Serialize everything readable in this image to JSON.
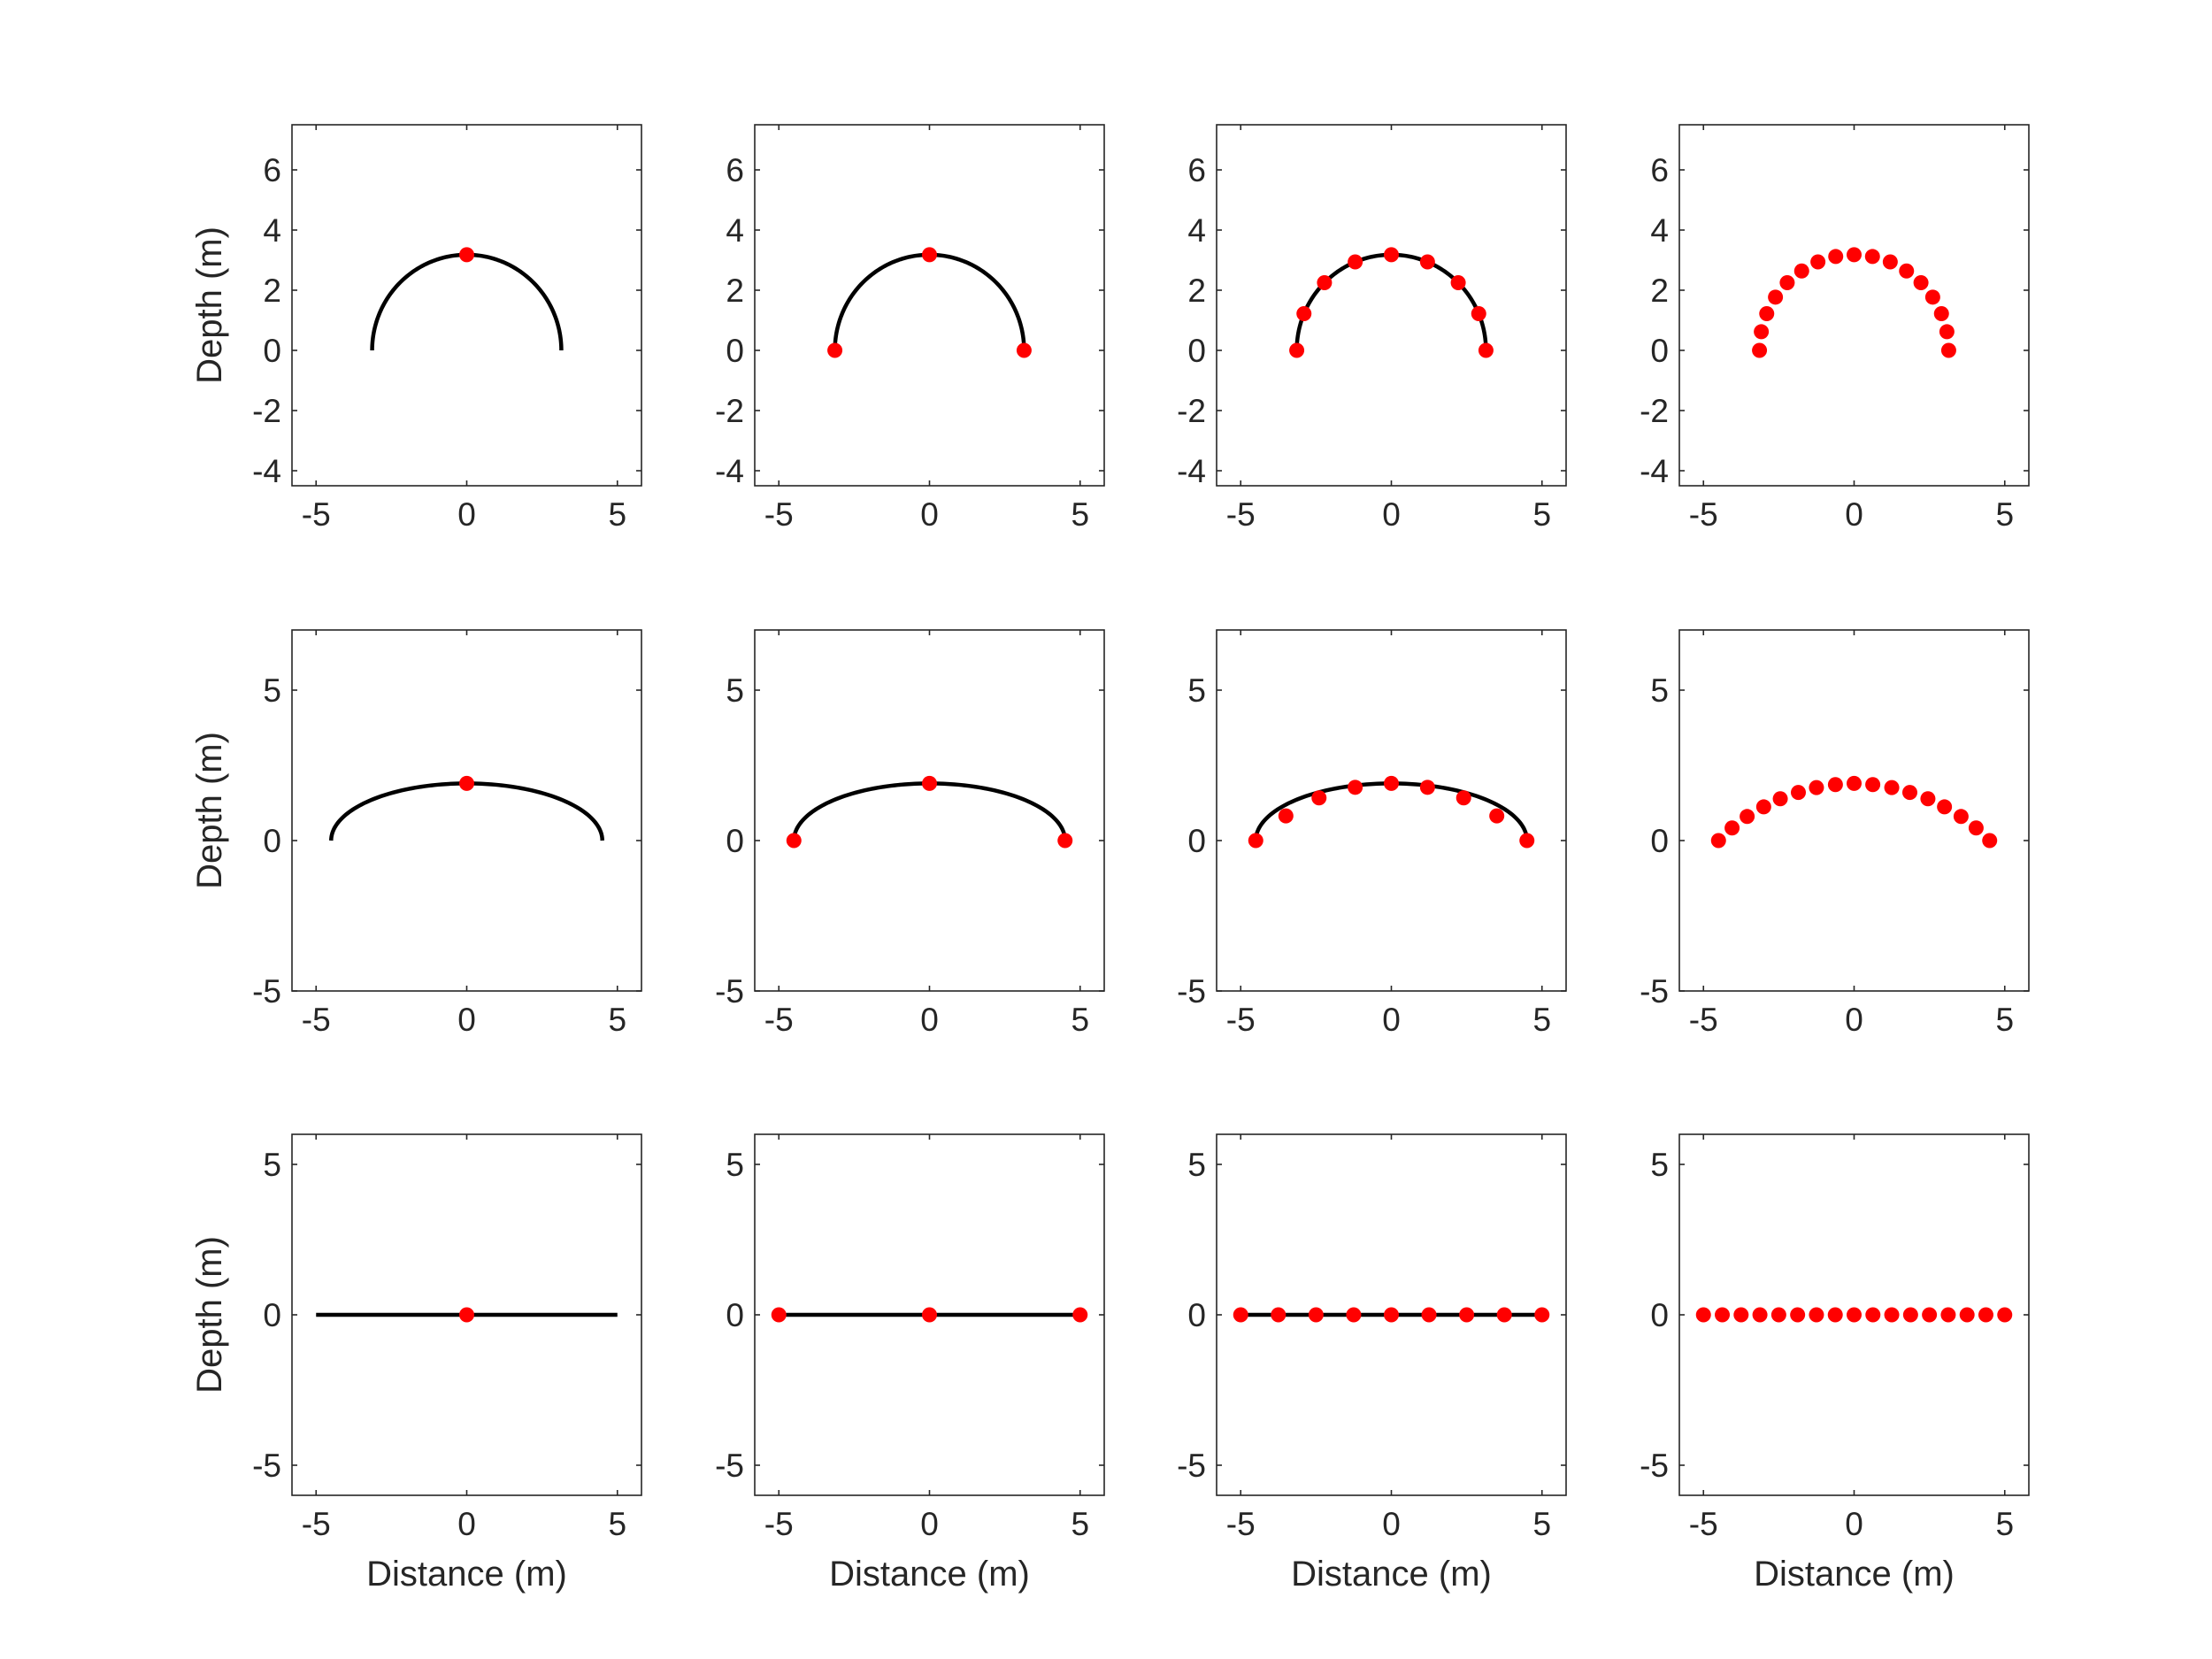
{
  "colors": {
    "curve": "#000000",
    "points": "#ff0000",
    "axes": "#262626",
    "background": "#ffffff"
  },
  "labels": {
    "xlabel": "Distance (m)",
    "ylabel": "Depth (m)"
  },
  "chart_data": [
    {
      "type": "line",
      "row": 0,
      "col": 0,
      "xlim": [
        -5.8,
        5.8
      ],
      "ylim": [
        -4.5,
        7.5
      ],
      "xticks": [
        -5,
        0,
        5
      ],
      "yticks": [
        -4,
        -2,
        0,
        2,
        4,
        6
      ],
      "xlabel": "",
      "ylabel": "Depth (m)",
      "curve": {
        "shape": "arc",
        "half_width": 3.14,
        "height": 3.18
      },
      "points": {
        "count": 1,
        "x": [
          0
        ],
        "y": [
          3.18
        ]
      }
    },
    {
      "type": "line",
      "row": 0,
      "col": 1,
      "xlim": [
        -5.8,
        5.8
      ],
      "ylim": [
        -4.5,
        7.5
      ],
      "xticks": [
        -5,
        0,
        5
      ],
      "yticks": [
        -4,
        -2,
        0,
        2,
        4,
        6
      ],
      "xlabel": "",
      "ylabel": "",
      "curve": {
        "shape": "arc",
        "half_width": 3.14,
        "height": 3.18
      },
      "points": {
        "count": 3,
        "x": [
          -3.14,
          0,
          3.14
        ],
        "y": [
          0,
          3.18,
          0
        ]
      }
    },
    {
      "type": "line",
      "row": 0,
      "col": 2,
      "xlim": [
        -5.8,
        5.8
      ],
      "ylim": [
        -4.5,
        7.5
      ],
      "xticks": [
        -5,
        0,
        5
      ],
      "yticks": [
        -4,
        -2,
        0,
        2,
        4,
        6
      ],
      "xlabel": "",
      "ylabel": "",
      "curve": {
        "shape": "arc",
        "half_width": 3.14,
        "height": 3.18
      },
      "points": {
        "count": 9,
        "x": [
          -3.14,
          -2.9,
          -2.22,
          -1.2,
          0,
          1.2,
          2.22,
          2.9,
          3.14
        ],
        "y": [
          0,
          1.22,
          2.25,
          2.94,
          3.18,
          2.94,
          2.25,
          1.22,
          0
        ]
      }
    },
    {
      "type": "scatter",
      "row": 0,
      "col": 3,
      "xlim": [
        -5.8,
        5.8
      ],
      "ylim": [
        -4.5,
        7.5
      ],
      "xticks": [
        -5,
        0,
        5
      ],
      "yticks": [
        -4,
        -2,
        0,
        2,
        4,
        6
      ],
      "xlabel": "",
      "ylabel": "",
      "curve": null,
      "points": {
        "count": 17,
        "x": [
          -3.14,
          -3.08,
          -2.9,
          -2.61,
          -2.22,
          -1.74,
          -1.2,
          -0.61,
          0,
          0.61,
          1.2,
          1.74,
          2.22,
          2.61,
          2.9,
          3.08,
          3.14
        ],
        "y": [
          0,
          0.62,
          1.22,
          1.77,
          2.25,
          2.64,
          2.94,
          3.12,
          3.18,
          3.12,
          2.94,
          2.64,
          2.25,
          1.77,
          1.22,
          0.62,
          0
        ]
      }
    },
    {
      "type": "line",
      "row": 1,
      "col": 0,
      "xlim": [
        -5.8,
        5.8
      ],
      "ylim": [
        -5,
        7
      ],
      "xticks": [
        -5,
        0,
        5
      ],
      "yticks": [
        -5,
        0,
        5
      ],
      "xlabel": "",
      "ylabel": "Depth (m)",
      "curve": {
        "shape": "arc",
        "half_width": 4.5,
        "height": 1.9
      },
      "points": {
        "count": 1,
        "x": [
          0
        ],
        "y": [
          1.9
        ]
      }
    },
    {
      "type": "line",
      "row": 1,
      "col": 1,
      "xlim": [
        -5.8,
        5.8
      ],
      "ylim": [
        -5,
        7
      ],
      "xticks": [
        -5,
        0,
        5
      ],
      "yticks": [
        -5,
        0,
        5
      ],
      "xlabel": "",
      "ylabel": "",
      "curve": {
        "shape": "arc",
        "half_width": 4.5,
        "height": 1.9
      },
      "points": {
        "count": 3,
        "x": [
          -4.5,
          0,
          4.5
        ],
        "y": [
          0,
          1.9,
          0
        ]
      }
    },
    {
      "type": "line",
      "row": 1,
      "col": 2,
      "xlim": [
        -5.8,
        5.8
      ],
      "ylim": [
        -5,
        7
      ],
      "xticks": [
        -5,
        0,
        5
      ],
      "yticks": [
        -5,
        0,
        5
      ],
      "xlabel": "",
      "ylabel": "",
      "curve": {
        "shape": "arc",
        "half_width": 4.5,
        "height": 1.9
      },
      "points": {
        "count": 9,
        "x": [
          -4.5,
          -3.5,
          -2.4,
          -1.2,
          0,
          1.2,
          2.4,
          3.5,
          4.5
        ],
        "y": [
          0,
          0.82,
          1.42,
          1.77,
          1.9,
          1.77,
          1.42,
          0.82,
          0
        ]
      }
    },
    {
      "type": "scatter",
      "row": 1,
      "col": 3,
      "xlim": [
        -5.8,
        5.8
      ],
      "ylim": [
        -5,
        7
      ],
      "xticks": [
        -5,
        0,
        5
      ],
      "yticks": [
        -5,
        0,
        5
      ],
      "xlabel": "",
      "ylabel": "",
      "curve": null,
      "points": {
        "count": 17,
        "x": [
          -4.5,
          -4.05,
          -3.55,
          -3.0,
          -2.45,
          -1.85,
          -1.25,
          -0.62,
          0,
          0.62,
          1.25,
          1.85,
          2.45,
          3.0,
          3.55,
          4.05,
          4.5
        ],
        "y": [
          0,
          0.42,
          0.8,
          1.12,
          1.39,
          1.6,
          1.76,
          1.86,
          1.9,
          1.86,
          1.76,
          1.6,
          1.39,
          1.12,
          0.8,
          0.42,
          0
        ]
      }
    },
    {
      "type": "line",
      "row": 2,
      "col": 0,
      "xlim": [
        -5.8,
        5.8
      ],
      "ylim": [
        -6,
        6
      ],
      "xticks": [
        -5,
        0,
        5
      ],
      "yticks": [
        -5,
        0,
        5
      ],
      "xlabel": "Distance (m)",
      "ylabel": "Depth (m)",
      "curve": {
        "shape": "line",
        "half_width": 5,
        "height": 0
      },
      "points": {
        "count": 1,
        "x": [
          0
        ],
        "y": [
          0
        ]
      }
    },
    {
      "type": "line",
      "row": 2,
      "col": 1,
      "xlim": [
        -5.8,
        5.8
      ],
      "ylim": [
        -6,
        6
      ],
      "xticks": [
        -5,
        0,
        5
      ],
      "yticks": [
        -5,
        0,
        5
      ],
      "xlabel": "Distance (m)",
      "ylabel": "",
      "curve": {
        "shape": "line",
        "half_width": 5,
        "height": 0
      },
      "points": {
        "count": 3,
        "x": [
          -5,
          0,
          5
        ],
        "y": [
          0,
          0,
          0
        ]
      }
    },
    {
      "type": "line",
      "row": 2,
      "col": 2,
      "xlim": [
        -5.8,
        5.8
      ],
      "ylim": [
        -6,
        6
      ],
      "xticks": [
        -5,
        0,
        5
      ],
      "yticks": [
        -5,
        0,
        5
      ],
      "xlabel": "Distance (m)",
      "ylabel": "",
      "curve": {
        "shape": "line",
        "half_width": 5,
        "height": 0
      },
      "points": {
        "count": 9,
        "x": [
          -5,
          -3.75,
          -2.5,
          -1.25,
          0,
          1.25,
          2.5,
          3.75,
          5
        ],
        "y": [
          0,
          0,
          0,
          0,
          0,
          0,
          0,
          0,
          0
        ]
      }
    },
    {
      "type": "scatter",
      "row": 2,
      "col": 3,
      "xlim": [
        -5.8,
        5.8
      ],
      "ylim": [
        -6,
        6
      ],
      "xticks": [
        -5,
        0,
        5
      ],
      "yticks": [
        -5,
        0,
        5
      ],
      "xlabel": "Distance (m)",
      "ylabel": "",
      "curve": null,
      "points": {
        "count": 17,
        "x": [
          -5,
          -4.375,
          -3.75,
          -3.125,
          -2.5,
          -1.875,
          -1.25,
          -0.625,
          0,
          0.625,
          1.25,
          1.875,
          2.5,
          3.125,
          3.75,
          4.375,
          5
        ],
        "y": [
          0,
          0,
          0,
          0,
          0,
          0,
          0,
          0,
          0,
          0,
          0,
          0,
          0,
          0,
          0,
          0,
          0
        ]
      }
    }
  ]
}
